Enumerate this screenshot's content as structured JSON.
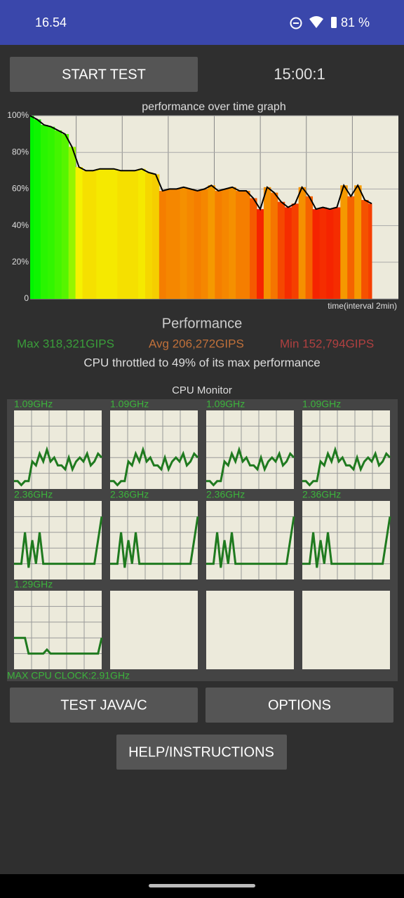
{
  "status_bar": {
    "time": "16.54",
    "battery": "81 %"
  },
  "buttons": {
    "start": "START TEST",
    "java": "TEST JAVA/C",
    "options": "OPTIONS",
    "help": "HELP/INSTRUCTIONS"
  },
  "timer": "15:00:1",
  "performance_graph": {
    "type": "line",
    "title": "performance over time graph",
    "x_label": "time(interval 2min)",
    "ylim": [
      0,
      100
    ],
    "yticks": [
      0,
      {
        "value": 20,
        "label": "20%"
      },
      {
        "value": 40,
        "label": "40%"
      },
      {
        "value": 60,
        "label": "60%"
      },
      {
        "value": 80,
        "label": "80%"
      },
      {
        "value": 100,
        "label": "100%"
      }
    ],
    "values": [
      100,
      98,
      95,
      94,
      92,
      90,
      83,
      72,
      70,
      70,
      71,
      71,
      71,
      70,
      70,
      70,
      71,
      69,
      68,
      59,
      60,
      60,
      61,
      60,
      59,
      60,
      62,
      59,
      60,
      61,
      59,
      59,
      55,
      49,
      61,
      58,
      53,
      50,
      52,
      61,
      56,
      49,
      50,
      49,
      50,
      62,
      56,
      62,
      54,
      52
    ]
  },
  "summary": {
    "title": "Performance",
    "max": "Max 318,321GIPS",
    "avg": "Avg 206,272GIPS",
    "min": "Min 152,794GIPS",
    "throttle": "CPU throttled to 49% of its max performance"
  },
  "cpu_monitor": {
    "title": "CPU Monitor",
    "ylim": [
      0,
      100
    ],
    "cores": [
      {
        "freq": "1.09GHz",
        "values": [
          10,
          10,
          5,
          10,
          10,
          35,
          30,
          45,
          35,
          50,
          35,
          40,
          30,
          30,
          25,
          40,
          25,
          35,
          40,
          35,
          45,
          30,
          35,
          45,
          40
        ]
      },
      {
        "freq": "1.09GHz",
        "values": [
          10,
          10,
          5,
          10,
          10,
          35,
          30,
          45,
          35,
          50,
          35,
          40,
          30,
          30,
          25,
          40,
          25,
          35,
          40,
          35,
          45,
          30,
          35,
          45,
          40
        ]
      },
      {
        "freq": "1.09GHz",
        "values": [
          10,
          10,
          5,
          10,
          10,
          35,
          30,
          45,
          35,
          50,
          35,
          40,
          30,
          30,
          25,
          40,
          25,
          35,
          40,
          35,
          45,
          30,
          35,
          45,
          40
        ]
      },
      {
        "freq": "1.09GHz",
        "values": [
          10,
          10,
          5,
          10,
          10,
          35,
          30,
          45,
          35,
          50,
          35,
          40,
          30,
          30,
          25,
          40,
          25,
          35,
          40,
          35,
          45,
          30,
          35,
          45,
          40
        ]
      },
      {
        "freq": "2.36GHz",
        "values": [
          20,
          20,
          20,
          60,
          15,
          50,
          20,
          60,
          20,
          20,
          20,
          20,
          20,
          20,
          20,
          20,
          20,
          20,
          20,
          20,
          20,
          20,
          20,
          50,
          80
        ]
      },
      {
        "freq": "2.36GHz",
        "values": [
          20,
          20,
          20,
          60,
          15,
          50,
          20,
          60,
          20,
          20,
          20,
          20,
          20,
          20,
          20,
          20,
          20,
          20,
          20,
          20,
          20,
          20,
          20,
          50,
          80
        ]
      },
      {
        "freq": "2.36GHz",
        "values": [
          20,
          20,
          20,
          60,
          15,
          50,
          20,
          60,
          20,
          20,
          20,
          20,
          20,
          20,
          20,
          20,
          20,
          20,
          20,
          20,
          20,
          20,
          20,
          50,
          80
        ]
      },
      {
        "freq": "2.36GHz",
        "values": [
          20,
          20,
          20,
          60,
          15,
          50,
          20,
          60,
          20,
          20,
          20,
          20,
          20,
          20,
          20,
          20,
          20,
          20,
          20,
          20,
          20,
          20,
          20,
          50,
          80
        ]
      },
      {
        "freq": "1.29GHz",
        "values": [
          40,
          40,
          40,
          40,
          20,
          20,
          20,
          20,
          20,
          25,
          20,
          20,
          20,
          20,
          20,
          20,
          20,
          20,
          20,
          20,
          20,
          20,
          20,
          20,
          40
        ]
      }
    ],
    "max_clock": "MAX CPU CLOCK:2.91GHz"
  }
}
